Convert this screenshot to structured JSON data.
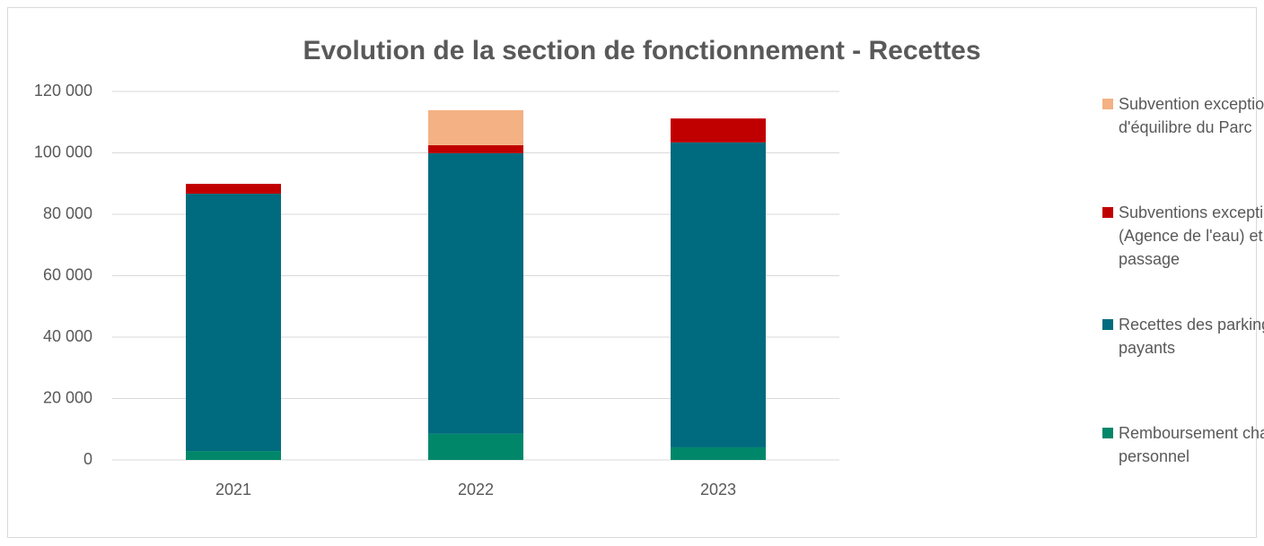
{
  "chart_data": {
    "type": "stacked_bar",
    "title": "Evolution de la section de fonctionnement - Recettes",
    "categories": [
      "2021",
      "2022",
      "2023"
    ],
    "series": [
      {
        "name": "Remboursement charges de personnel",
        "color": "#00876a",
        "values": [
          2900,
          8500,
          4100
        ]
      },
      {
        "name": "Recettes des parkings payants",
        "color": "#006a7e",
        "values": [
          83800,
          91400,
          99300
        ]
      },
      {
        "name": "Subventions exceptionnelles (Agence de l'eau) et droits de passage",
        "color": "#c00000",
        "values": [
          3200,
          2600,
          7800
        ]
      },
      {
        "name": "Subvention exceptionnelle d'équilibre du Parc",
        "color": "#f4b183",
        "values": [
          0,
          11400,
          0
        ]
      }
    ],
    "ylim": [
      0,
      120000
    ],
    "yticks": [
      0,
      {
        "value": 20000,
        "label": "20 000"
      },
      {
        "value": 40000,
        "label": "40 000"
      },
      {
        "value": 60000,
        "label": "60 000"
      },
      {
        "value": 80000,
        "label": "80 000"
      },
      {
        "value": 100000,
        "label": "100 000"
      },
      {
        "value": 120000,
        "label": "120 000"
      }
    ],
    "grid": true,
    "legend": "right"
  }
}
